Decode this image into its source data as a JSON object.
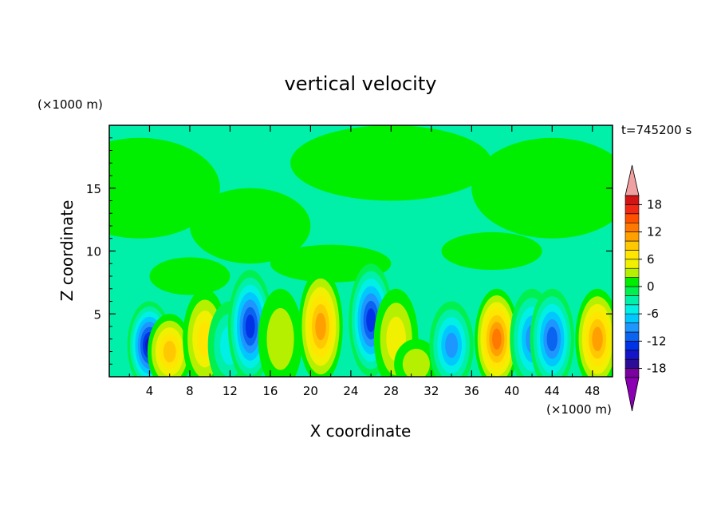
{
  "chart_data": {
    "type": "heatmap",
    "title": "vertical velocity",
    "xlabel": "X coordinate",
    "ylabel": "Z coordinate",
    "x_unit": "(×1000 m)",
    "y_unit": "(×1000 m)",
    "time_label": "t=745200 s",
    "xlim": [
      0,
      50
    ],
    "ylim": [
      0,
      20
    ],
    "x_ticks": [
      "4",
      "8",
      "12",
      "16",
      "20",
      "24",
      "28",
      "32",
      "36",
      "40",
      "44",
      "48"
    ],
    "y_ticks": [
      "5",
      "10",
      "15"
    ],
    "colorbar": {
      "levels": [
        -20,
        -18,
        -16,
        -14,
        -12,
        -10,
        -8,
        -6,
        -4,
        -2,
        0,
        2,
        4,
        6,
        8,
        10,
        12,
        14,
        16,
        18,
        20
      ],
      "tick_labels": [
        "18",
        "12",
        "6",
        "0",
        "-6",
        "-12",
        "-18"
      ],
      "colors": [
        "#7a00a0",
        "#2c0c96",
        "#1414c8",
        "#0032e6",
        "#0a64f0",
        "#1e96ff",
        "#00c8ff",
        "#00f0e6",
        "#00f0aa",
        "#00f050",
        "#00ee00",
        "#b4f000",
        "#f0f000",
        "#ffe600",
        "#ffc800",
        "#ffa000",
        "#ff7800",
        "#ff5000",
        "#f02814",
        "#d21414",
        "#f0a0a0"
      ],
      "under_color": "#8c00b4",
      "over_color": "#f0a0a0"
    },
    "cells": [
      {
        "x": 4,
        "z": 2.5,
        "w": -15
      },
      {
        "x": 6,
        "z": 2,
        "w": 9
      },
      {
        "x": 9.5,
        "z": 3,
        "w": 8
      },
      {
        "x": 12,
        "z": 2.5,
        "w": -5
      },
      {
        "x": 14,
        "z": 4,
        "w": -13
      },
      {
        "x": 17,
        "z": 3,
        "w": 4
      },
      {
        "x": 21,
        "z": 4,
        "w": 12
      },
      {
        "x": 26,
        "z": 4.5,
        "w": -14
      },
      {
        "x": 28.5,
        "z": 3,
        "w": 5
      },
      {
        "x": 30.5,
        "z": 1,
        "w": 4
      },
      {
        "x": 34,
        "z": 2.5,
        "w": -10
      },
      {
        "x": 38.5,
        "z": 3,
        "w": 13
      },
      {
        "x": 42,
        "z": 3,
        "w": -9
      },
      {
        "x": 44,
        "z": 3,
        "w": -11
      },
      {
        "x": 48.5,
        "z": 3,
        "w": 12
      }
    ]
  }
}
